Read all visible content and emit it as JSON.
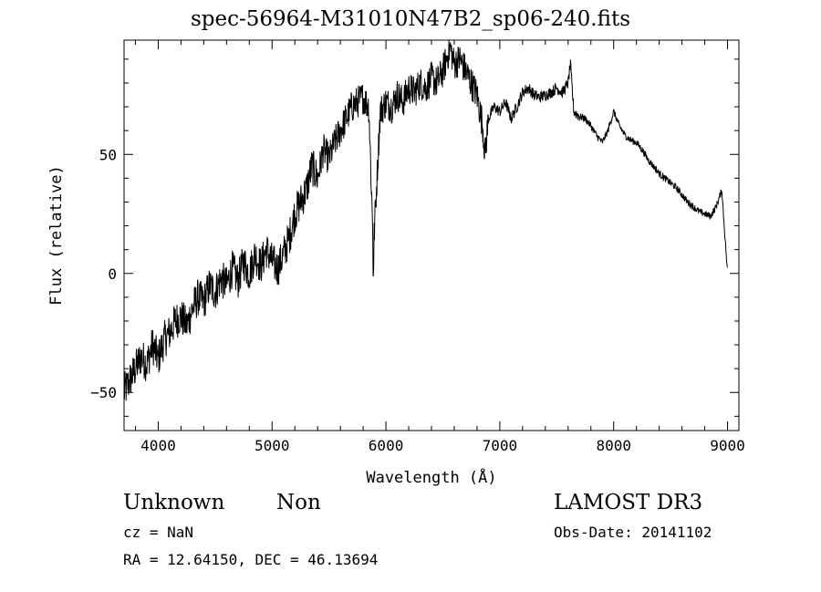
{
  "header": {
    "title": "spec-56964-M31010N47B2_sp06-240.fits"
  },
  "info": {
    "object_class": "Unknown",
    "object_subclass": "Non",
    "survey": "LAMOST DR3",
    "cz": "cz = NaN",
    "obs_date": "Obs-Date: 20141102",
    "ra_dec": "RA =  12.64150, DEC =  46.13694"
  },
  "chart_data": {
    "type": "line",
    "title": "spec-56964-M31010N47B2_sp06-240.fits",
    "xlabel": "Wavelength (Å)",
    "ylabel": "Flux (relative)",
    "xlim": [
      3700,
      9100
    ],
    "ylim": [
      -66,
      98
    ],
    "xticks": [
      4000,
      5000,
      6000,
      7000,
      8000,
      9000
    ],
    "yticks": [
      -50,
      0,
      50
    ],
    "xtick_labels": [
      "4000",
      "5000",
      "6000",
      "7000",
      "8000",
      "9000"
    ],
    "ytick_labels": [
      "−50",
      "0",
      "50"
    ],
    "grid": false,
    "series": [
      {
        "x": [
          3700,
          3750,
          3800,
          3850,
          3900,
          3950,
          4000,
          4050,
          4100,
          4150,
          4200,
          4250,
          4300,
          4350,
          4400,
          4450,
          4500,
          4550,
          4600,
          4650,
          4700,
          4750,
          4800,
          4850,
          4900,
          4950,
          5000,
          5050,
          5100,
          5150,
          5200,
          5250,
          5300,
          5350,
          5400,
          5450,
          5500,
          5550,
          5600,
          5650,
          5700,
          5750,
          5800,
          5850,
          5890,
          5950,
          6000,
          6050,
          6100,
          6150,
          6200,
          6250,
          6300,
          6350,
          6400,
          6450,
          6500,
          6563,
          6600,
          6650,
          6700,
          6750,
          6800,
          6850,
          6870,
          6900,
          6950,
          7000,
          7050,
          7100,
          7150,
          7200,
          7250,
          7300,
          7350,
          7400,
          7450,
          7500,
          7550,
          7600,
          7620,
          7650,
          7700,
          7750,
          7800,
          7850,
          7900,
          7950,
          8000,
          8050,
          8100,
          8150,
          8200,
          8250,
          8300,
          8350,
          8400,
          8450,
          8500,
          8550,
          8600,
          8650,
          8700,
          8750,
          8800,
          8850,
          8900,
          8950,
          9000
        ],
        "y": [
          -50,
          -45,
          -40,
          -35,
          -38,
          -30,
          -36,
          -28,
          -25,
          -20,
          -18,
          -22,
          -15,
          -10,
          -12,
          -5,
          -8,
          -2,
          -5,
          2,
          -3,
          5,
          0,
          8,
          3,
          10,
          5,
          2,
          8,
          15,
          25,
          30,
          35,
          45,
          40,
          52,
          48,
          55,
          60,
          65,
          70,
          72,
          74,
          70,
          10,
          68,
          72,
          70,
          75,
          72,
          78,
          76,
          80,
          78,
          82,
          80,
          85,
          95,
          88,
          90,
          85,
          80,
          75,
          62,
          50,
          65,
          70,
          68,
          72,
          65,
          70,
          76,
          78,
          75,
          74,
          75,
          76,
          78,
          76,
          80,
          88,
          68,
          66,
          65,
          62,
          58,
          55,
          60,
          68,
          62,
          58,
          56,
          55,
          52,
          48,
          45,
          42,
          40,
          38,
          36,
          33,
          30,
          28,
          26,
          25,
          24,
          28,
          35,
          0
        ]
      }
    ]
  }
}
